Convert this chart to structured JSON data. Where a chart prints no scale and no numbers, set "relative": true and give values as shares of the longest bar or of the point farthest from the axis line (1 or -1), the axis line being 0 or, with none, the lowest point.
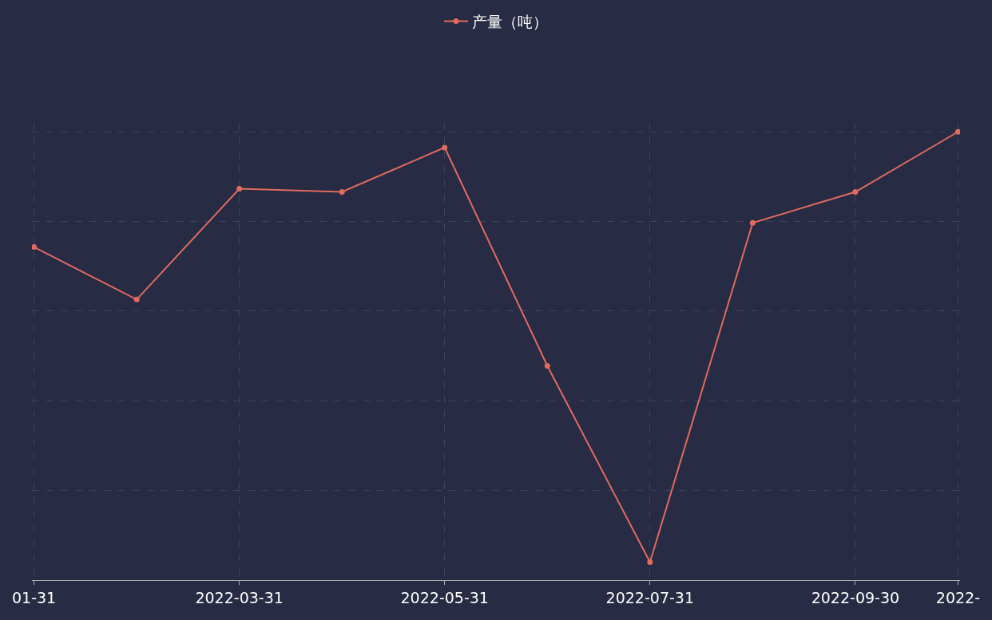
{
  "chart_data": {
    "type": "line",
    "relative": true,
    "categories": [
      "01-31",
      null,
      "2022-03-31",
      null,
      "2022-05-31",
      null,
      "2022-07-31",
      null,
      "2022-09-30",
      "2022-"
    ],
    "series": [
      {
        "name": "产量（吨）",
        "color": "#e06b5f",
        "values": [
          0.743,
          0.626,
          0.873,
          0.866,
          0.965,
          0.478,
          0.04,
          0.797,
          0.866,
          1.0
        ]
      }
    ],
    "grid": true,
    "legend": "top",
    "marker": "circle",
    "line_style": "solid"
  }
}
